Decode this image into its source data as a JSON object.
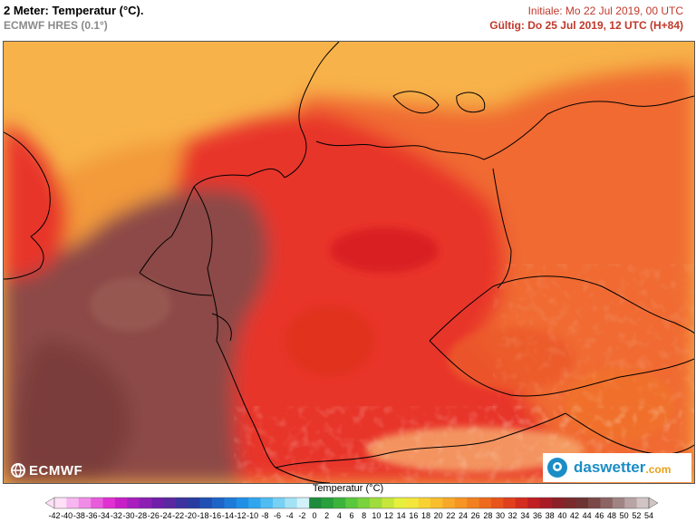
{
  "header": {
    "title": "2 Meter: Temperatur (°C).",
    "model": "ECMWF HRES (0.1°)",
    "initial": "Initiale: Mo 22 Jul 2019, 00 UTC",
    "valid": "Gültig: Do 25 Jul 2019, 12 UTC (H+84)"
  },
  "logos": {
    "ecmwf": "ECMWF",
    "daswetter": "daswetter",
    "daswetter_tld": ".com"
  },
  "legend": {
    "title": "Temperatur (°C)",
    "values": [
      "-42",
      "-40",
      "-38",
      "-36",
      "-34",
      "-32",
      "-30",
      "-28",
      "-26",
      "-24",
      "-22",
      "-20",
      "-18",
      "-16",
      "-14",
      "-12",
      "-10",
      "-8",
      "-6",
      "-4",
      "-2",
      "0",
      "2",
      "4",
      "6",
      "8",
      "10",
      "12",
      "14",
      "16",
      "18",
      "20",
      "22",
      "24",
      "26",
      "28",
      "30",
      "32",
      "34",
      "36",
      "38",
      "40",
      "42",
      "44",
      "46",
      "48",
      "50",
      "52",
      "54"
    ],
    "colors": [
      "#ffe0f7",
      "#f7b6ef",
      "#f08ce6",
      "#e85cdc",
      "#e030d2",
      "#c81ec8",
      "#a81ebe",
      "#8c1eb4",
      "#701eaa",
      "#5a28a0",
      "#3c32a0",
      "#283ca0",
      "#2050b4",
      "#1e64c8",
      "#1e7ad8",
      "#2090e6",
      "#30a6ee",
      "#50bcf2",
      "#78d0f4",
      "#a4e2f6",
      "#d2f2fa",
      "#1e8c3c",
      "#28a03c",
      "#3cb43c",
      "#5ac83c",
      "#7ad23c",
      "#a0dc3c",
      "#c6e63c",
      "#e6f03c",
      "#f4e63c",
      "#f8d232",
      "#f8be2c",
      "#f8a828",
      "#f69424",
      "#f28020",
      "#ee6a1e",
      "#e8541c",
      "#e0401c",
      "#d42c1e",
      "#c01e22",
      "#a81c26",
      "#8c2028",
      "#7a2a2c",
      "#6e3434",
      "#7a4848",
      "#8c6464",
      "#a08484",
      "#b8a4a4",
      "#d0c4c4"
    ]
  },
  "map_colors": {
    "sea_north": "#f7b24a",
    "sea_mid": "#f39a3a",
    "west_hot": "#8c4a46",
    "west_hotter": "#7a3c3a",
    "central": "#e8342c",
    "east": "#f06a30",
    "borders": "#000000"
  }
}
